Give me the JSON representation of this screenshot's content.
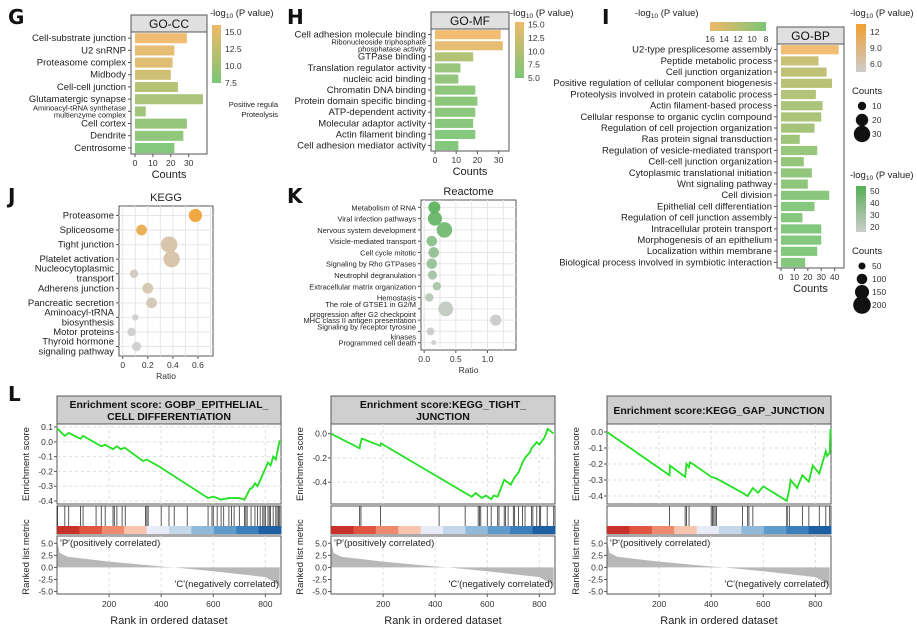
{
  "panels": {
    "G": "G",
    "H": "H",
    "I": "I",
    "J": "J",
    "K": "K",
    "L": "L"
  },
  "legend_title": "-log",
  "legend_sub": "10",
  "legend_tail": " (P value)",
  "overflow_text": [
    "Positive regula",
    "Proteolysis"
  ],
  "chart_data": [
    {
      "id": "go_cc",
      "type": "bar",
      "title": "GO-CC",
      "xlabel": "Counts",
      "xlim": [
        0,
        38
      ],
      "xticks": [
        0,
        10,
        20,
        30
      ],
      "categories": [
        "Cell-substrate junction",
        "U2 snRNP",
        "Proteasome complex",
        "Midbody",
        "Cell-cell junction",
        "Glutamatergic synapse",
        "Aminoacyl-tRNA synthetase multienzyme complex",
        "Cell cortex",
        "Dendrite",
        "Centrosome"
      ],
      "highlight": [
        false,
        false,
        false,
        false,
        true,
        false,
        false,
        false,
        false,
        false
      ],
      "values": [
        29,
        22,
        21,
        20,
        24,
        38,
        6,
        29,
        27,
        22
      ],
      "neglog10p": [
        16,
        15.2,
        14.6,
        13.5,
        11.5,
        10.5,
        9.8,
        9,
        8.5,
        7.5
      ],
      "colorbar": {
        "title": "-log10 (P value)",
        "ticks": [
          15.0,
          12.5,
          10.0,
          7.5
        ],
        "range": [
          7.5,
          16
        ],
        "low_color": "#7cc576",
        "high_color": "#f0b96a"
      }
    },
    {
      "id": "go_mf",
      "type": "bar",
      "title": "GO-MF",
      "xlabel": "Counts",
      "xlim": [
        0,
        33
      ],
      "xticks": [
        0,
        10,
        20,
        30
      ],
      "categories": [
        "Cell adhesion molecule binding",
        "Ribonucleoside triphosphate phosphatase activity",
        "GTPase binding",
        "Translation regulator activity",
        "nucleic acid binding",
        "Chromatin DNA binding",
        "Protein domain specific binding",
        "ATP-dependent activity",
        "Molecular adaptor activity",
        "Actin filament binding",
        "Cell adhesion mediator activity"
      ],
      "highlight": [
        true,
        false,
        false,
        false,
        false,
        false,
        false,
        false,
        false,
        false,
        true
      ],
      "values": [
        31,
        32,
        18,
        12,
        11,
        19,
        20,
        19,
        18,
        19,
        11
      ],
      "neglog10p": [
        15.5,
        14.5,
        9.5,
        7,
        6.5,
        6.2,
        6,
        5.8,
        5.6,
        5.4,
        5.2
      ],
      "colorbar": {
        "title": "-log10 (P value)",
        "ticks": [
          15.0,
          12.5,
          10.0,
          7.5,
          5.0
        ],
        "range": [
          5,
          15.5
        ],
        "low_color": "#7cc576",
        "high_color": "#f0b96a"
      }
    },
    {
      "id": "go_bp",
      "type": "bar",
      "title": "GO-BP",
      "xlabel": "Counts",
      "xlim": [
        0,
        44
      ],
      "xticks": [
        0,
        10,
        20,
        30,
        40
      ],
      "categories": [
        "U2-type presplicesome assembly",
        "Peptide metabolic process",
        "Cell junction organization",
        "Positive regulation of cellular component biogenesis",
        "Proteolysis involved in protein catabolic process",
        "Actin filament-based process",
        "Cellular response to organic cyclin compound",
        "Regulation of cell projection organization",
        "Ras protein signal transduction",
        "Regulation of vesicle-mediated transport",
        "Cell-cell junction organization",
        "Cytoplasmic translational initiation",
        "Wnt signaling pathway",
        "Cell division",
        "Epithelial cell differentiation",
        "Regulation of cell junction assembly",
        "Intracellular protein transport",
        "Morphogenesis of an epithelium",
        "Localization within membrane",
        "Biological process involved in symbiotic interaction"
      ],
      "highlight": [
        false,
        false,
        true,
        false,
        false,
        false,
        false,
        false,
        false,
        false,
        true,
        false,
        false,
        false,
        true,
        true,
        false,
        false,
        false,
        false
      ],
      "values": [
        43,
        28,
        34,
        38,
        26,
        31,
        30,
        25,
        14,
        27,
        17,
        23,
        20,
        36,
        25,
        16,
        30,
        30,
        27,
        18
      ],
      "neglog10p": [
        16,
        13,
        12.5,
        12,
        11.5,
        11,
        10.8,
        10.5,
        10,
        9.5,
        9.2,
        9,
        8.8,
        8.5,
        8.3,
        8.2,
        8,
        8,
        8,
        8
      ],
      "colorbar": {
        "title": "-log10 (P value)",
        "ticks": [
          16,
          14,
          12,
          10,
          8
        ],
        "range": [
          8,
          16
        ],
        "low_color": "#7cc576",
        "high_color": "#f0b96a",
        "placement": "top"
      }
    },
    {
      "id": "kegg",
      "type": "scatter",
      "title": "KEGG",
      "xlabel": "Ratio",
      "xlim": [
        -0.03,
        0.72
      ],
      "xticks": [
        0,
        0.2,
        0.4,
        0.6
      ],
      "xtick_labels": [
        "0",
        "0.2",
        "0.4",
        "0.6"
      ],
      "categories": [
        "Proteasome",
        "Spliceosome",
        "Tight junction",
        "Platelet activation",
        "Nucleocytoplasmic transport",
        "Adherens junction",
        "Pancreatic secretion",
        "Aminoacyl-tRNA biosynthesis",
        "Motor proteins",
        "Thyroid hormone signaling pathway"
      ],
      "label_lines": [
        [
          "Proteasome"
        ],
        [
          "Spliceosome"
        ],
        [
          "Tight junction"
        ],
        [
          "Platelet activation"
        ],
        [
          "Nucleocytoplasmic",
          "transport"
        ],
        [
          "Adherens junction"
        ],
        [
          "Pancreatic secretion"
        ],
        [
          "Aminoacyl-tRNA",
          "biosynthesis"
        ],
        [
          "Motor proteins"
        ],
        [
          "Thyroid hormone",
          "signaling pathway"
        ]
      ],
      "highlight": [
        false,
        false,
        true,
        false,
        false,
        true,
        false,
        false,
        false,
        false
      ],
      "x": [
        0.58,
        0.15,
        0.37,
        0.39,
        0.09,
        0.2,
        0.23,
        0.1,
        0.07,
        0.11
      ],
      "counts": [
        22,
        16,
        30,
        30,
        10,
        16,
        16,
        5,
        10,
        12
      ],
      "neglog10p": [
        12,
        10.5,
        5,
        5,
        3.5,
        4.5,
        4,
        2.5,
        2.5,
        2.5
      ],
      "legend": {
        "color_title": "-log10 (P value)",
        "color_ticks": [
          12,
          9,
          6
        ],
        "color_range": [
          2.5,
          12
        ],
        "low_color": "#cccccc",
        "high_color": "#f0a030",
        "size_title": "Counts",
        "size_ticks": [
          10,
          20,
          30
        ]
      }
    },
    {
      "id": "reactome",
      "type": "scatter",
      "title": "Reactome",
      "xlabel": "Ratio",
      "xlim": [
        -0.05,
        1.45
      ],
      "xticks": [
        0,
        0.5,
        1.0
      ],
      "xtick_labels": [
        "0.0",
        "0.5",
        "1.0"
      ],
      "categories": [
        "Metabolism of RNA",
        "Viral infection pathways",
        "Nervous system development",
        "Visicle-mediated transport",
        "Cell cycle mitotic",
        "Signaling by Rho GTPases",
        "Neutrophil degranulation",
        "Extracellular matrix organization",
        "Hemostasis",
        "The role of GTSE1 in G2/M progression after G2 checkpoint",
        "MHC class II antigen presentation",
        "Signaling by receptor tyrosine kinases",
        "Programmed cell death"
      ],
      "label_lines": [
        [
          "Metabolism of RNA"
        ],
        [
          "Viral infection pathways"
        ],
        [
          "Nervous system development"
        ],
        [
          "Visicle-mediated transport"
        ],
        [
          "Cell cycle mitotic"
        ],
        [
          "Signaling by Rho GTPases"
        ],
        [
          "Neutrophil degranulation"
        ],
        [
          "Extracellular matrix organization"
        ],
        [
          "Hemostasis"
        ],
        [
          "The role of GTSE1 in G2/M",
          "progression after G2 checkpoint"
        ],
        [
          "MHC class II antigen presentation"
        ],
        [
          "Signaling by receptor tyrosine",
          "kinases"
        ],
        [
          "Programmed cell death"
        ]
      ],
      "highlight": [
        false,
        false,
        true,
        false,
        false,
        false,
        false,
        false,
        false,
        false,
        false,
        false,
        false
      ],
      "x": [
        0.16,
        0.17,
        0.32,
        0.12,
        0.15,
        0.12,
        0.13,
        0.2,
        0.08,
        0.34,
        1.13,
        0.1,
        0.15
      ],
      "counts": [
        120,
        150,
        170,
        100,
        100,
        100,
        80,
        70,
        70,
        160,
        110,
        60,
        20
      ],
      "neglog10p": [
        55,
        52,
        48,
        40,
        38,
        36,
        32,
        30,
        25,
        22,
        20,
        20,
        18
      ],
      "legend": {
        "color_title": "-log10 (P value)",
        "color_ticks": [
          50,
          40,
          30,
          20
        ],
        "color_range": [
          18,
          55
        ],
        "low_color": "#cccccc",
        "high_color": "#55b055",
        "size_title": "Counts",
        "size_ticks": [
          50,
          100,
          150,
          200
        ]
      }
    },
    {
      "id": "gsea_epithelial",
      "type": "line",
      "title": "Enrichment score: GOBP_EPITHELIAL_ CELL DIFFERENTIATION",
      "title_lines": [
        "Enrichment score: GOBP_EPITHELIAL_",
        "CELL DIFFERENTIATION"
      ],
      "ylabel": "Enrichment score",
      "ylim": [
        -0.42,
        0.12
      ],
      "yticks": [
        0.1,
        0.0,
        -0.1,
        -0.2,
        -0.3,
        -0.4
      ],
      "ytick_labels": [
        "0.1",
        "0.0",
        "-0.1",
        "-0.2",
        "-0.3",
        "-0.4"
      ],
      "xlim": [
        0,
        860
      ],
      "x": [
        0,
        30,
        45,
        90,
        100,
        170,
        185,
        215,
        230,
        245,
        260,
        330,
        345,
        395,
        580,
        600,
        630,
        660,
        700,
        720,
        740,
        750,
        760,
        770,
        790,
        800,
        810,
        820,
        830,
        840,
        855
      ],
      "y": [
        0.09,
        0.04,
        0.06,
        0.02,
        0.04,
        -0.03,
        -0.02,
        -0.05,
        -0.03,
        -0.05,
        -0.04,
        -0.13,
        -0.12,
        -0.17,
        -0.38,
        -0.37,
        -0.39,
        -0.38,
        -0.38,
        -0.39,
        -0.32,
        -0.31,
        -0.28,
        -0.3,
        -0.22,
        -0.18,
        -0.14,
        -0.16,
        -0.1,
        -0.12,
        0.01
      ],
      "hits": [
        2,
        30,
        45,
        90,
        100,
        150,
        170,
        185,
        215,
        220,
        230,
        250,
        262,
        340,
        345,
        350,
        400,
        430,
        450,
        500,
        580,
        595,
        600,
        615,
        630,
        640,
        660,
        670,
        680,
        700,
        720,
        725,
        730,
        745,
        760,
        770,
        780,
        790,
        795,
        800,
        810,
        815,
        820,
        830,
        840,
        845,
        850,
        855
      ],
      "ranked_ylim": [
        -5.5,
        6.5
      ],
      "ranked_yticks": [
        "5.0",
        "2.5",
        "0.0",
        "-2.5",
        "-5.0"
      ],
      "xticks": [
        200,
        400,
        600,
        800
      ],
      "xlabel": "Rank in ordered dataset",
      "ylabel2": "Ranked list metric",
      "pos_label": "'P'(positively correlated)",
      "neg_label": "'C'(negatively correlated)"
    },
    {
      "id": "gsea_tight",
      "type": "line",
      "title": "Enrichment score:KEGG_TIGHT_ JUNCTION",
      "title_lines": [
        "Enrichment score:KEGG_TIGHT_",
        "JUNCTION"
      ],
      "ylabel": "Enrichment score",
      "ylim": [
        -0.58,
        0.08
      ],
      "yticks": [
        0.0,
        -0.2,
        -0.4
      ],
      "ytick_labels": [
        "0.0",
        "-0.2",
        "-0.4"
      ],
      "xlim": [
        0,
        860
      ],
      "x": [
        0,
        110,
        112,
        118,
        190,
        192,
        540,
        555,
        580,
        595,
        615,
        625,
        640,
        665,
        690,
        705,
        720,
        735,
        745,
        765,
        770,
        790,
        800,
        820,
        832,
        855
      ],
      "y": [
        0.0,
        -0.12,
        -0.09,
        -0.04,
        -0.1,
        -0.08,
        -0.52,
        -0.49,
        -0.53,
        -0.51,
        -0.54,
        -0.51,
        -0.52,
        -0.38,
        -0.42,
        -0.36,
        -0.32,
        -0.24,
        -0.2,
        -0.15,
        -0.12,
        -0.07,
        -0.09,
        -0.03,
        0.04,
        0.0
      ],
      "hits": [
        110,
        115,
        190,
        415,
        515,
        565,
        570,
        575,
        600,
        615,
        640,
        645,
        665,
        670,
        680,
        700,
        705,
        720,
        735,
        745,
        770,
        775,
        790,
        800,
        805,
        830,
        855
      ],
      "ranked_ylim": [
        -5.5,
        6.5
      ],
      "ranked_yticks": [
        "5.0",
        "2.5",
        "0.0",
        "-2.5",
        "-5.0"
      ],
      "xticks": [
        200,
        400,
        600,
        800
      ],
      "xlabel": "Rank in ordered dataset",
      "ylabel2": "Ranked list metric",
      "pos_label": "'P'(positively correlated)",
      "neg_label": "'C'(negatively correlated)"
    },
    {
      "id": "gsea_gap",
      "type": "line",
      "title": "Enrichment score:KEGG_GAP_JUNCTION",
      "title_lines": [
        "Enrichment score:KEGG_GAP_JUNCTION"
      ],
      "ylabel": "Enrichment score",
      "ylim": [
        -0.45,
        0.05
      ],
      "yticks": [
        0.0,
        -0.1,
        -0.2,
        -0.3,
        -0.4
      ],
      "ytick_labels": [
        "0.0",
        "-0.1",
        "-0.2",
        "-0.3",
        "-0.4"
      ],
      "xlim": [
        0,
        860
      ],
      "x": [
        0,
        240,
        242,
        300,
        305,
        315,
        318,
        330,
        400,
        420,
        520,
        540,
        560,
        580,
        600,
        690,
        700,
        705,
        730,
        750,
        775,
        790,
        815,
        840,
        845,
        855,
        858
      ],
      "y": [
        0.0,
        -0.27,
        -0.21,
        -0.28,
        -0.2,
        -0.22,
        -0.19,
        -0.2,
        -0.28,
        -0.29,
        -0.38,
        -0.4,
        -0.35,
        -0.38,
        -0.34,
        -0.43,
        -0.36,
        -0.3,
        -0.35,
        -0.27,
        -0.31,
        -0.21,
        -0.26,
        -0.12,
        -0.15,
        -0.13,
        0.02
      ],
      "hits": [
        240,
        300,
        305,
        315,
        400,
        405,
        410,
        415,
        420,
        520,
        540,
        545,
        560,
        690,
        692,
        700,
        750,
        775,
        815,
        840,
        855
      ],
      "ranked_ylim": [
        -5.5,
        6.5
      ],
      "ranked_yticks": [
        "5.0",
        "2.5",
        "0.0",
        "-2.5",
        "-5.0"
      ],
      "xticks": [
        200,
        400,
        600,
        800
      ],
      "xlabel": "Rank in ordered dataset",
      "ylabel2": "Ranked list metric",
      "pos_label": "'P'(positively correlated)",
      "neg_label": "'C'(negatively correlated)"
    }
  ]
}
